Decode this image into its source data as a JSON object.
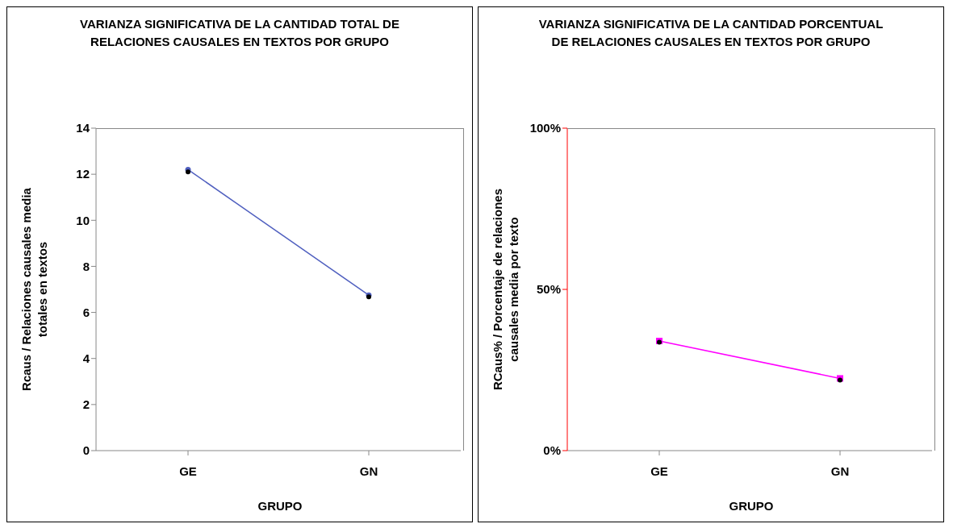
{
  "chart_data": [
    {
      "type": "line",
      "title": "VARIANZA SIGNIFICATIVA DE LA CANTIDAD TOTAL DE RELACIONES CAUSALES EN TEXTOS POR GRUPO",
      "xlabel": "GRUPO",
      "ylabel": "Rcaus / Relaciones causales media totales en textos",
      "categories": [
        "GE",
        "GN"
      ],
      "series": [
        {
          "color": "#4f5fbf",
          "values": [
            12.2,
            6.75
          ],
          "marker": "circle"
        },
        {
          "type": "scatter",
          "color": "#000000",
          "values": [
            12.1,
            6.68
          ],
          "marker": "circle"
        }
      ],
      "ylim": [
        0,
        14
      ],
      "yticks": [
        0,
        2,
        4,
        6,
        8,
        10,
        12,
        14
      ],
      "legend": false
    },
    {
      "type": "line",
      "title": "VARIANZA SIGNIFICATIVA DE LA CANTIDAD PORCENTUAL DE RELACIONES CAUSALES EN TEXTOS POR GRUPO",
      "xlabel": "GRUPO",
      "ylabel": "RCaus% / Porcentaje de relaciones causales media por texto",
      "categories": [
        "GE",
        "GN"
      ],
      "series": [
        {
          "color": "#ff00ff",
          "values": [
            34,
            22.4
          ],
          "marker": "square"
        },
        {
          "type": "scatter",
          "color": "#000000",
          "values": [
            33.6,
            21.9
          ],
          "marker": "circle"
        }
      ],
      "ylim": [
        0,
        100
      ],
      "yticks": [
        {
          "value": 0,
          "label": "0%"
        },
        {
          "value": 50,
          "label": "50%"
        },
        {
          "value": 100,
          "label": "100%"
        }
      ],
      "legend": false
    }
  ]
}
